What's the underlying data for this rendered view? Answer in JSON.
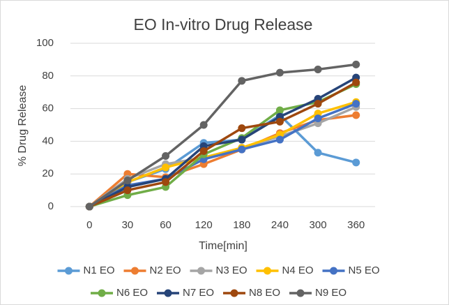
{
  "chart_data": {
    "type": "line",
    "title": "EO In-vitro Drug Release",
    "x_label": "Time[min]",
    "y_label": "% Drug Release",
    "categories": [
      "0",
      "30",
      "60",
      "120",
      "180",
      "240",
      "300",
      "360"
    ],
    "ylim": [
      0,
      100
    ],
    "yticks": [
      0,
      20,
      40,
      60,
      80,
      100
    ],
    "grid": true,
    "legend": "bottom",
    "series": [
      {
        "name": "N1 EO",
        "color": "#5b9bd5",
        "values": [
          0,
          15,
          23,
          39,
          41,
          56,
          33,
          27
        ]
      },
      {
        "name": "N2 EO",
        "color": "#ed7d31",
        "values": [
          0,
          20,
          18,
          26,
          35,
          45,
          53,
          56
        ]
      },
      {
        "name": "N3 EO",
        "color": "#a5a5a5",
        "values": [
          0,
          17,
          26,
          30,
          36,
          43,
          51,
          61
        ]
      },
      {
        "name": "N4 EO",
        "color": "#ffc000",
        "values": [
          0,
          15,
          24,
          30,
          36,
          44,
          57,
          64
        ]
      },
      {
        "name": "N5 EO",
        "color": "#4472c4",
        "values": [
          0,
          13,
          17,
          29,
          35,
          41,
          54,
          63
        ]
      },
      {
        "name": "N6 EO",
        "color": "#70ad47",
        "values": [
          0,
          7,
          12,
          32,
          42,
          59,
          64,
          75
        ]
      },
      {
        "name": "N7 EO",
        "color": "#264478",
        "values": [
          0,
          12,
          17,
          37,
          41,
          55,
          66,
          79
        ]
      },
      {
        "name": "N8 EO",
        "color": "#9e480e",
        "values": [
          0,
          10,
          15,
          34,
          48,
          52,
          63,
          76
        ]
      },
      {
        "name": "N9 EO",
        "color": "#636363",
        "values": [
          0,
          16,
          31,
          50,
          77,
          82,
          84,
          87
        ]
      }
    ]
  }
}
